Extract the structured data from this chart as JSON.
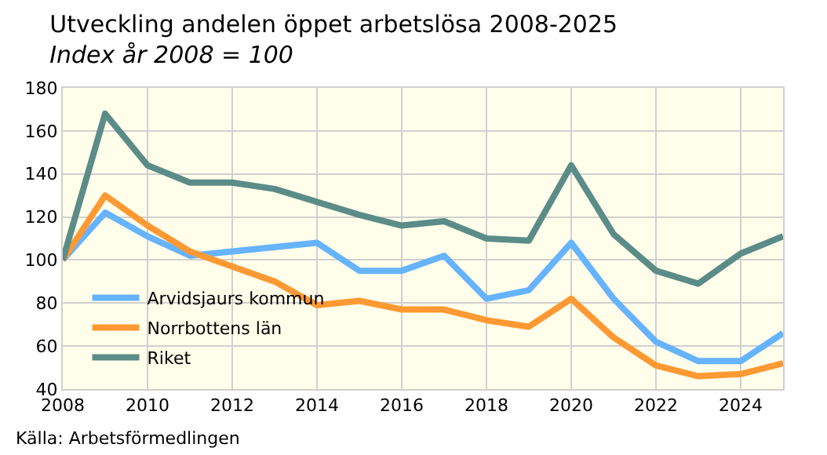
{
  "chart_data": {
    "type": "line",
    "title": "Utveckling andelen öppet arbetslösa 2008-2025",
    "subtitle": "Index år 2008 = 100",
    "x": [
      2008,
      2009,
      2010,
      2011,
      2012,
      2013,
      2014,
      2015,
      2016,
      2017,
      2018,
      2019,
      2020,
      2021,
      2022,
      2023,
      2024,
      2025
    ],
    "series": [
      {
        "name": "Arvidsjaurs kommun",
        "color": "#66b3ff",
        "values": [
          100,
          122,
          111,
          102,
          104,
          106,
          108,
          95,
          95,
          102,
          82,
          86,
          108,
          82,
          62,
          53,
          53,
          66
        ]
      },
      {
        "name": "Norrbottens län",
        "color": "#ff9933",
        "values": [
          100,
          130,
          116,
          104,
          97,
          90,
          79,
          81,
          77,
          77,
          72,
          69,
          82,
          64,
          51,
          46,
          47,
          52
        ]
      },
      {
        "name": "Riket",
        "color": "#5b8c87",
        "values": [
          100,
          168,
          144,
          136,
          136,
          133,
          127,
          121,
          116,
          118,
          110,
          109,
          144,
          112,
          95,
          89,
          103,
          111
        ]
      }
    ],
    "xlim": [
      2008,
      2025
    ],
    "xticks": [
      2008,
      2010,
      2012,
      2014,
      2016,
      2018,
      2020,
      2022,
      2024
    ],
    "ylim": [
      40,
      180
    ],
    "yticks": [
      40,
      60,
      80,
      100,
      120,
      140,
      160,
      180
    ],
    "grid": true,
    "legend": "bottom left",
    "line_style": "solid",
    "marker": "none",
    "annotations": [
      "Källa: Arbetsförmedlingen"
    ]
  }
}
